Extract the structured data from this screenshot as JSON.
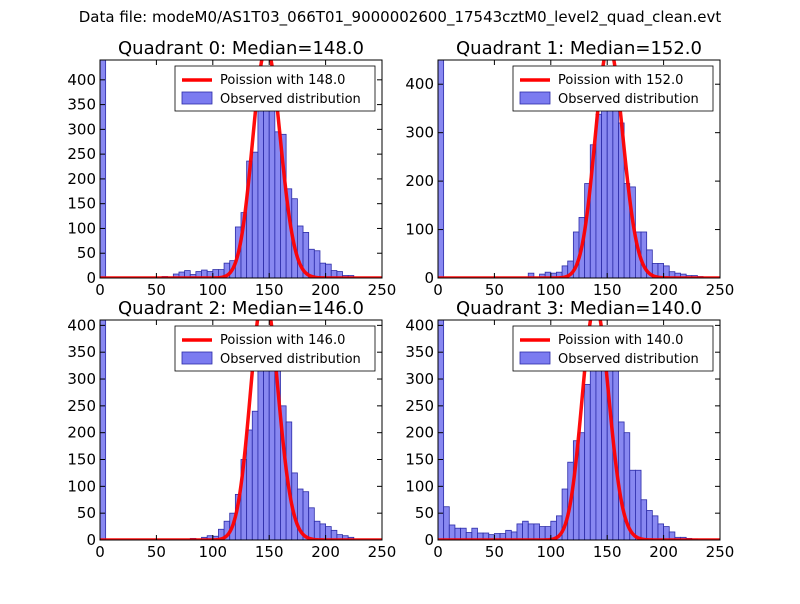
{
  "figure_title": "Data file: modeM0/AS1T03_066T01_9000002600_17543cztM0_level2_quad_clean.evt",
  "colors": {
    "bar_fill": "#7b7bf0",
    "bar_edge": "#2c2ca8",
    "poisson_line": "#ff0000",
    "legend_border": "#000000"
  },
  "chart_data": [
    {
      "type": "bar",
      "title": "Quadrant 0: Median=148.0",
      "legend": {
        "line_label": "Poission with 148.0",
        "bar_label": "Observed distribution",
        "placement": "upper-right"
      },
      "xlim": [
        0,
        250
      ],
      "ylim": [
        0,
        440
      ],
      "xticks": [
        0,
        50,
        100,
        150,
        200,
        250
      ],
      "yticks": [
        0,
        50,
        100,
        150,
        200,
        250,
        300,
        350,
        400
      ],
      "median": 148.0,
      "poisson_scale": 14200,
      "bin_width": 5,
      "bins": [
        [
          0,
          440
        ],
        [
          5,
          0
        ],
        [
          10,
          0
        ],
        [
          15,
          0
        ],
        [
          20,
          0
        ],
        [
          25,
          0
        ],
        [
          30,
          0
        ],
        [
          35,
          0
        ],
        [
          40,
          0
        ],
        [
          45,
          0
        ],
        [
          50,
          0
        ],
        [
          55,
          3
        ],
        [
          60,
          2
        ],
        [
          65,
          8
        ],
        [
          70,
          12
        ],
        [
          75,
          15
        ],
        [
          80,
          7
        ],
        [
          85,
          13
        ],
        [
          90,
          16
        ],
        [
          95,
          13
        ],
        [
          100,
          17
        ],
        [
          105,
          17
        ],
        [
          110,
          30
        ],
        [
          115,
          35
        ],
        [
          120,
          103
        ],
        [
          125,
          132
        ],
        [
          130,
          236
        ],
        [
          135,
          254
        ],
        [
          140,
          345
        ],
        [
          145,
          360
        ],
        [
          150,
          410
        ],
        [
          155,
          295
        ],
        [
          160,
          290
        ],
        [
          165,
          180
        ],
        [
          170,
          160
        ],
        [
          175,
          105
        ],
        [
          180,
          92
        ],
        [
          185,
          58
        ],
        [
          190,
          55
        ],
        [
          195,
          30
        ],
        [
          200,
          28
        ],
        [
          205,
          15
        ],
        [
          210,
          13
        ],
        [
          215,
          5
        ],
        [
          220,
          5
        ]
      ]
    },
    {
      "type": "bar",
      "title": "Quadrant 1: Median=152.0",
      "legend": {
        "line_label": "Poission with 152.0",
        "bar_label": "Observed distribution",
        "placement": "upper-right"
      },
      "xlim": [
        0,
        250
      ],
      "ylim": [
        0,
        450
      ],
      "xticks": [
        0,
        50,
        100,
        150,
        200,
        250
      ],
      "yticks": [
        0,
        100,
        200,
        300,
        400
      ],
      "median": 152.0,
      "poisson_scale": 14800,
      "bin_width": 5,
      "bins": [
        [
          0,
          450
        ],
        [
          5,
          0
        ],
        [
          10,
          0
        ],
        [
          15,
          0
        ],
        [
          20,
          0
        ],
        [
          25,
          0
        ],
        [
          30,
          0
        ],
        [
          35,
          0
        ],
        [
          40,
          0
        ],
        [
          45,
          0
        ],
        [
          50,
          0
        ],
        [
          55,
          0
        ],
        [
          60,
          0
        ],
        [
          65,
          0
        ],
        [
          70,
          0
        ],
        [
          75,
          0
        ],
        [
          80,
          10
        ],
        [
          85,
          0
        ],
        [
          90,
          8
        ],
        [
          95,
          12
        ],
        [
          100,
          10
        ],
        [
          105,
          12
        ],
        [
          110,
          25
        ],
        [
          115,
          35
        ],
        [
          120,
          95
        ],
        [
          125,
          125
        ],
        [
          130,
          195
        ],
        [
          135,
          275
        ],
        [
          140,
          338
        ],
        [
          145,
          380
        ],
        [
          150,
          425
        ],
        [
          155,
          365
        ],
        [
          160,
          320
        ],
        [
          165,
          195
        ],
        [
          170,
          188
        ],
        [
          175,
          95
        ],
        [
          180,
          95
        ],
        [
          185,
          58
        ],
        [
          190,
          30
        ],
        [
          195,
          30
        ],
        [
          200,
          25
        ],
        [
          205,
          13
        ],
        [
          210,
          10
        ],
        [
          215,
          8
        ],
        [
          220,
          5
        ],
        [
          225,
          5
        ],
        [
          230,
          3
        ]
      ]
    },
    {
      "type": "bar",
      "title": "Quadrant 2: Median=146.0",
      "legend": {
        "line_label": "Poission with 146.0",
        "bar_label": "Observed distribution",
        "placement": "upper-right"
      },
      "xlim": [
        0,
        250
      ],
      "ylim": [
        0,
        410
      ],
      "xticks": [
        0,
        50,
        100,
        150,
        200,
        250
      ],
      "yticks": [
        0,
        50,
        100,
        150,
        200,
        250,
        300,
        350,
        400
      ],
      "median": 146.0,
      "poisson_scale": 14000,
      "bin_width": 5,
      "bins": [
        [
          0,
          410
        ],
        [
          5,
          0
        ],
        [
          10,
          0
        ],
        [
          15,
          0
        ],
        [
          20,
          0
        ],
        [
          25,
          0
        ],
        [
          30,
          0
        ],
        [
          35,
          0
        ],
        [
          40,
          0
        ],
        [
          45,
          0
        ],
        [
          50,
          0
        ],
        [
          55,
          0
        ],
        [
          60,
          0
        ],
        [
          65,
          0
        ],
        [
          70,
          0
        ],
        [
          75,
          0
        ],
        [
          80,
          3
        ],
        [
          85,
          0
        ],
        [
          90,
          5
        ],
        [
          95,
          8
        ],
        [
          100,
          7
        ],
        [
          105,
          20
        ],
        [
          110,
          35
        ],
        [
          115,
          50
        ],
        [
          120,
          85
        ],
        [
          125,
          150
        ],
        [
          130,
          205
        ],
        [
          135,
          240
        ],
        [
          140,
          325
        ],
        [
          145,
          325
        ],
        [
          150,
          375
        ],
        [
          155,
          325
        ],
        [
          160,
          250
        ],
        [
          165,
          220
        ],
        [
          170,
          125
        ],
        [
          175,
          95
        ],
        [
          180,
          90
        ],
        [
          185,
          60
        ],
        [
          190,
          35
        ],
        [
          195,
          30
        ],
        [
          200,
          25
        ],
        [
          205,
          18
        ],
        [
          210,
          10
        ],
        [
          215,
          8
        ],
        [
          220,
          5
        ]
      ]
    },
    {
      "type": "bar",
      "title": "Quadrant 3: Median=140.0",
      "legend": {
        "line_label": "Poission with 140.0",
        "bar_label": "Observed distribution",
        "placement": "upper-right"
      },
      "xlim": [
        0,
        250
      ],
      "ylim": [
        0,
        410
      ],
      "xticks": [
        0,
        50,
        100,
        150,
        200,
        250
      ],
      "yticks": [
        0,
        50,
        100,
        150,
        200,
        250,
        300,
        350,
        400
      ],
      "median": 140.0,
      "poisson_scale": 13000,
      "bin_width": 5,
      "bins": [
        [
          0,
          410
        ],
        [
          5,
          62
        ],
        [
          10,
          28
        ],
        [
          15,
          22
        ],
        [
          20,
          22
        ],
        [
          25,
          14
        ],
        [
          30,
          22
        ],
        [
          35,
          13
        ],
        [
          40,
          13
        ],
        [
          45,
          10
        ],
        [
          50,
          12
        ],
        [
          55,
          12
        ],
        [
          60,
          18
        ],
        [
          65,
          15
        ],
        [
          70,
          30
        ],
        [
          75,
          35
        ],
        [
          80,
          30
        ],
        [
          85,
          30
        ],
        [
          90,
          25
        ],
        [
          95,
          25
        ],
        [
          100,
          35
        ],
        [
          105,
          45
        ],
        [
          110,
          95
        ],
        [
          115,
          145
        ],
        [
          120,
          185
        ],
        [
          125,
          200
        ],
        [
          130,
          290
        ],
        [
          135,
          325
        ],
        [
          140,
          385
        ],
        [
          145,
          380
        ],
        [
          150,
          330
        ],
        [
          155,
          320
        ],
        [
          160,
          220
        ],
        [
          165,
          200
        ],
        [
          170,
          130
        ],
        [
          175,
          130
        ],
        [
          180,
          75
        ],
        [
          185,
          55
        ],
        [
          190,
          45
        ],
        [
          195,
          30
        ],
        [
          200,
          25
        ],
        [
          205,
          15
        ],
        [
          210,
          5
        ],
        [
          215,
          5
        ],
        [
          220,
          3
        ],
        [
          225,
          2
        ]
      ]
    }
  ]
}
